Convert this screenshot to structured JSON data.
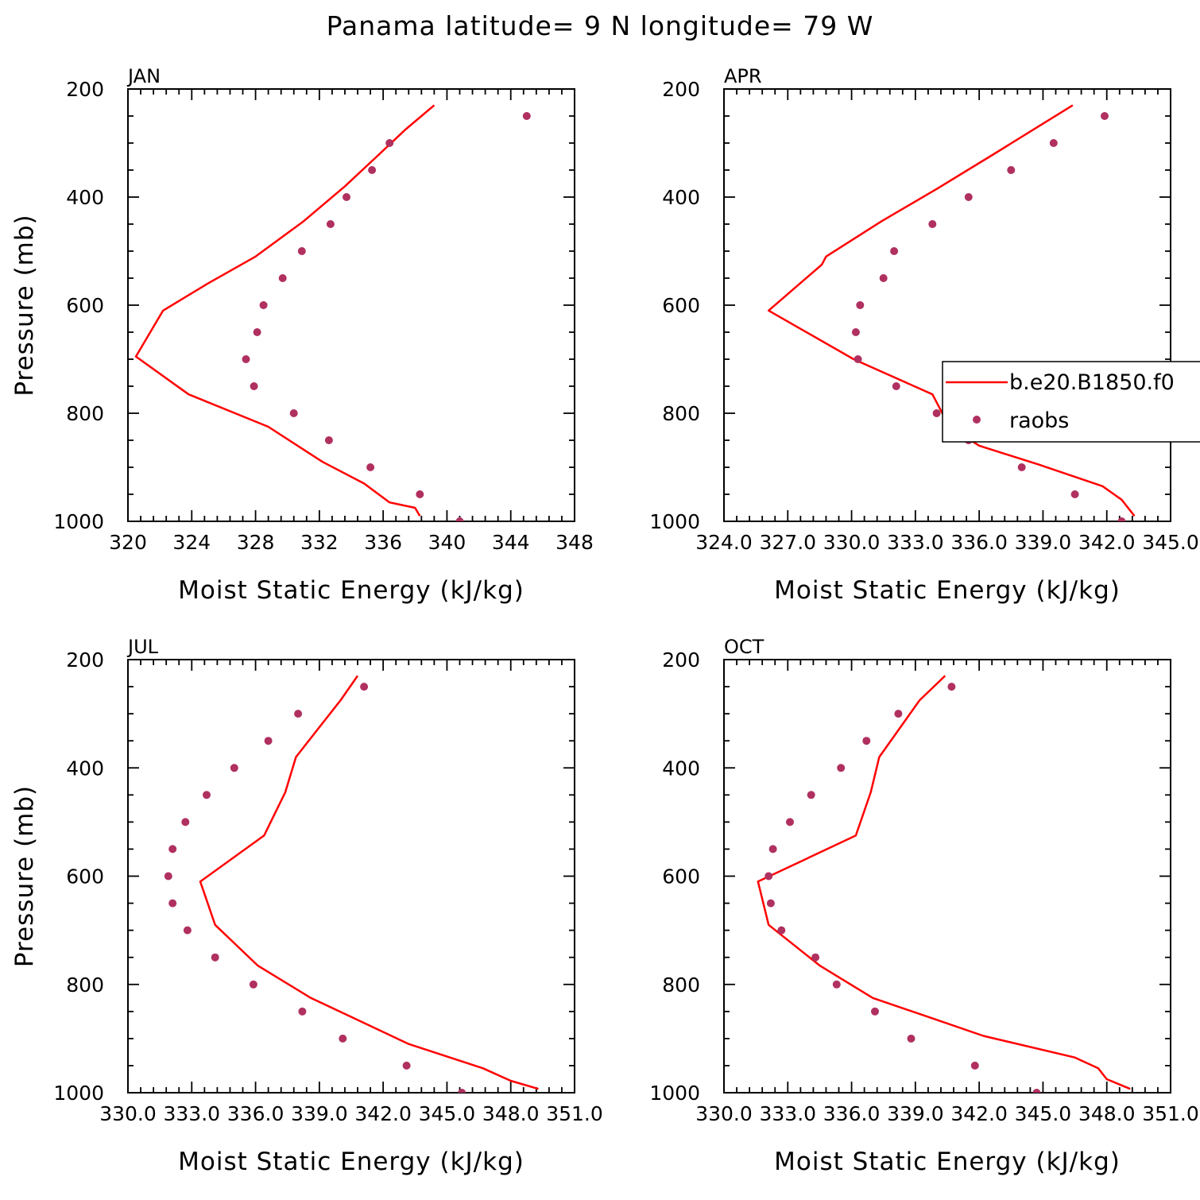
{
  "title": "Panama  latitude= 9 N longitude= 79 W",
  "legend": {
    "model_label": "b.e20.B1850.f0",
    "obs_label": "raobs"
  },
  "colors": {
    "model_line": "#ff0000",
    "obs_marker": "#b03060",
    "axes": "#000000",
    "background": "#ffffff"
  },
  "chart_data": [
    {
      "type": "line",
      "panel": "JAN",
      "xlabel": "Moist Static Energy (kJ/kg)",
      "ylabel": "Pressure (mb)",
      "xlim": [
        320,
        348
      ],
      "ylim": [
        1000,
        200
      ],
      "xticks": [
        "320",
        "324",
        "328",
        "332",
        "336",
        "340",
        "344",
        "348"
      ],
      "yticks": [
        "200",
        "400",
        "600",
        "800",
        "1000"
      ],
      "series": [
        {
          "name": "b.e20.B1850.f0",
          "style": "line",
          "points": [
            [
              339.2,
              230
            ],
            [
              337.4,
              275
            ],
            [
              335.6,
              325
            ],
            [
              333.6,
              380
            ],
            [
              331.0,
              445
            ],
            [
              328.0,
              510
            ],
            [
              325.0,
              560
            ],
            [
              322.2,
              610
            ],
            [
              320.5,
              695
            ],
            [
              323.8,
              765
            ],
            [
              328.8,
              825
            ],
            [
              332.2,
              890
            ],
            [
              334.8,
              930
            ],
            [
              336.4,
              965
            ],
            [
              338.0,
              975
            ],
            [
              338.3,
              990
            ]
          ]
        },
        {
          "name": "raobs",
          "style": "marker",
          "points": [
            [
              345.0,
              250
            ],
            [
              336.4,
              300
            ],
            [
              335.3,
              350
            ],
            [
              333.7,
              400
            ],
            [
              332.7,
              450
            ],
            [
              330.9,
              500
            ],
            [
              329.7,
              550
            ],
            [
              328.5,
              600
            ],
            [
              328.1,
              650
            ],
            [
              327.4,
              700
            ],
            [
              327.9,
              750
            ],
            [
              330.4,
              800
            ],
            [
              332.6,
              850
            ],
            [
              335.2,
              900
            ],
            [
              338.3,
              950
            ],
            [
              340.8,
              1000
            ]
          ]
        }
      ]
    },
    {
      "type": "line",
      "panel": "APR",
      "xlabel": "Moist Static Energy (kJ/kg)",
      "ylabel": "",
      "xlim": [
        324.0,
        345.0
      ],
      "ylim": [
        1000,
        200
      ],
      "xticks": [
        "324.0",
        "327.0",
        "330.0",
        "333.0",
        "336.0",
        "339.0",
        "342.0",
        "345.0"
      ],
      "yticks": [
        "200",
        "400",
        "600",
        "800",
        "1000"
      ],
      "legend_position": "right-middle",
      "series": [
        {
          "name": "b.e20.B1850.f0",
          "style": "line",
          "points": [
            [
              340.4,
              230
            ],
            [
              336.5,
              325
            ],
            [
              334.0,
              385
            ],
            [
              331.4,
              445
            ],
            [
              328.8,
              510
            ],
            [
              328.6,
              525
            ],
            [
              326.1,
              610
            ],
            [
              330.1,
              700
            ],
            [
              333.8,
              765
            ],
            [
              334.6,
              825
            ],
            [
              336.0,
              860
            ],
            [
              338.8,
              895
            ],
            [
              341.8,
              935
            ],
            [
              342.7,
              960
            ],
            [
              343.3,
              990
            ]
          ]
        },
        {
          "name": "raobs",
          "style": "marker",
          "points": [
            [
              341.9,
              250
            ],
            [
              339.5,
              300
            ],
            [
              337.5,
              350
            ],
            [
              335.5,
              400
            ],
            [
              333.8,
              450
            ],
            [
              332.0,
              500
            ],
            [
              331.5,
              550
            ],
            [
              330.4,
              600
            ],
            [
              330.2,
              650
            ],
            [
              330.3,
              700
            ],
            [
              332.1,
              750
            ],
            [
              334.0,
              800
            ],
            [
              335.5,
              850
            ],
            [
              338.0,
              900
            ],
            [
              340.5,
              950
            ],
            [
              342.7,
              1000
            ]
          ]
        }
      ]
    },
    {
      "type": "line",
      "panel": "JUL",
      "xlabel": "Moist Static Energy (kJ/kg)",
      "ylabel": "Pressure (mb)",
      "xlim": [
        330.0,
        351.0
      ],
      "ylim": [
        1000,
        200
      ],
      "xticks": [
        "330.0",
        "333.0",
        "336.0",
        "339.0",
        "342.0",
        "345.0",
        "348.0",
        "351.0"
      ],
      "yticks": [
        "200",
        "400",
        "600",
        "800",
        "1000"
      ],
      "series": [
        {
          "name": "b.e20.B1850.f0",
          "style": "line",
          "points": [
            [
              340.8,
              230
            ],
            [
              340.0,
              275
            ],
            [
              337.9,
              380
            ],
            [
              337.4,
              445
            ],
            [
              336.4,
              525
            ],
            [
              333.4,
              610
            ],
            [
              334.1,
              690
            ],
            [
              336.1,
              765
            ],
            [
              338.6,
              825
            ],
            [
              340.5,
              860
            ],
            [
              343.2,
              910
            ],
            [
              346.7,
              955
            ],
            [
              348.0,
              978
            ],
            [
              349.3,
              993
            ]
          ]
        },
        {
          "name": "raobs",
          "style": "marker",
          "points": [
            [
              341.1,
              250
            ],
            [
              338.0,
              300
            ],
            [
              336.6,
              350
            ],
            [
              335.0,
              400
            ],
            [
              333.7,
              450
            ],
            [
              332.7,
              500
            ],
            [
              332.1,
              550
            ],
            [
              331.9,
              600
            ],
            [
              332.1,
              650
            ],
            [
              332.8,
              700
            ],
            [
              334.1,
              750
            ],
            [
              335.9,
              800
            ],
            [
              338.2,
              850
            ],
            [
              340.1,
              900
            ],
            [
              343.1,
              950
            ],
            [
              345.7,
              1000
            ]
          ]
        }
      ]
    },
    {
      "type": "line",
      "panel": "OCT",
      "xlabel": "Moist Static Energy (kJ/kg)",
      "ylabel": "",
      "xlim": [
        330.0,
        351.0
      ],
      "ylim": [
        1000,
        200
      ],
      "xticks": [
        "330.0",
        "333.0",
        "336.0",
        "339.0",
        "342.0",
        "345.0",
        "348.0",
        "351.0"
      ],
      "yticks": [
        "200",
        "400",
        "600",
        "800",
        "1000"
      ],
      "series": [
        {
          "name": "b.e20.B1850.f0",
          "style": "line",
          "points": [
            [
              340.4,
              230
            ],
            [
              339.2,
              275
            ],
            [
              337.3,
              380
            ],
            [
              336.9,
              445
            ],
            [
              336.2,
              525
            ],
            [
              331.6,
              610
            ],
            [
              332.1,
              690
            ],
            [
              334.5,
              765
            ],
            [
              337.0,
              825
            ],
            [
              339.6,
              860
            ],
            [
              342.2,
              895
            ],
            [
              346.5,
              935
            ],
            [
              347.6,
              955
            ],
            [
              348.0,
              975
            ],
            [
              349.1,
              993
            ]
          ]
        },
        {
          "name": "raobs",
          "style": "marker",
          "points": [
            [
              340.7,
              250
            ],
            [
              338.2,
              300
            ],
            [
              336.7,
              350
            ],
            [
              335.5,
              400
            ],
            [
              334.1,
              450
            ],
            [
              333.1,
              500
            ],
            [
              332.3,
              550
            ],
            [
              332.1,
              600
            ],
            [
              332.2,
              650
            ],
            [
              332.7,
              700
            ],
            [
              334.3,
              750
            ],
            [
              335.3,
              800
            ],
            [
              337.1,
              850
            ],
            [
              338.8,
              900
            ],
            [
              341.8,
              950
            ],
            [
              344.7,
              1000
            ]
          ]
        }
      ]
    }
  ]
}
